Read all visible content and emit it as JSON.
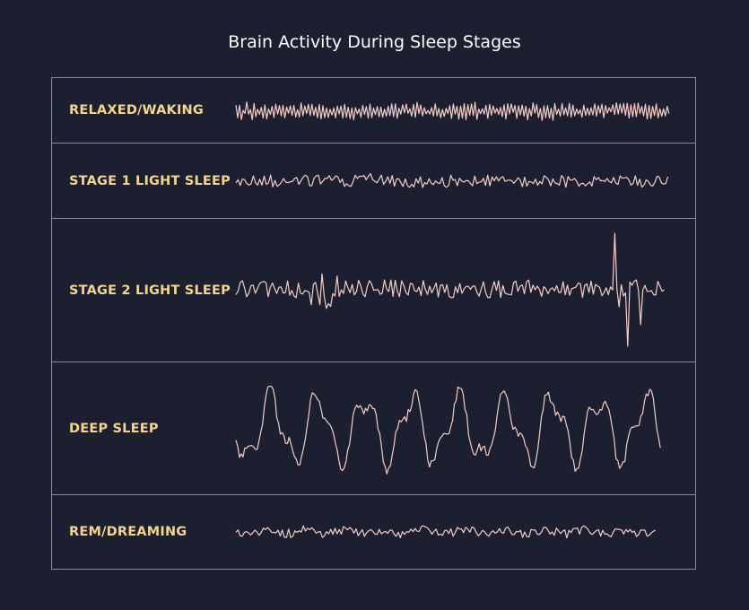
{
  "title": "Brain Activity During Sleep Stages",
  "colors": {
    "background": "#1b1f30",
    "label": "#f5d58e",
    "wave": "#f4cec6",
    "border": "#8a8d99"
  },
  "stages": [
    {
      "label": "RELAXED/WAKING"
    },
    {
      "label": "STAGE 1 LIGHT SLEEP"
    },
    {
      "label": "STAGE 2 LIGHT SLEEP"
    },
    {
      "label": "DEEP SLEEP"
    },
    {
      "label": "REM/DREAMING"
    }
  ]
}
